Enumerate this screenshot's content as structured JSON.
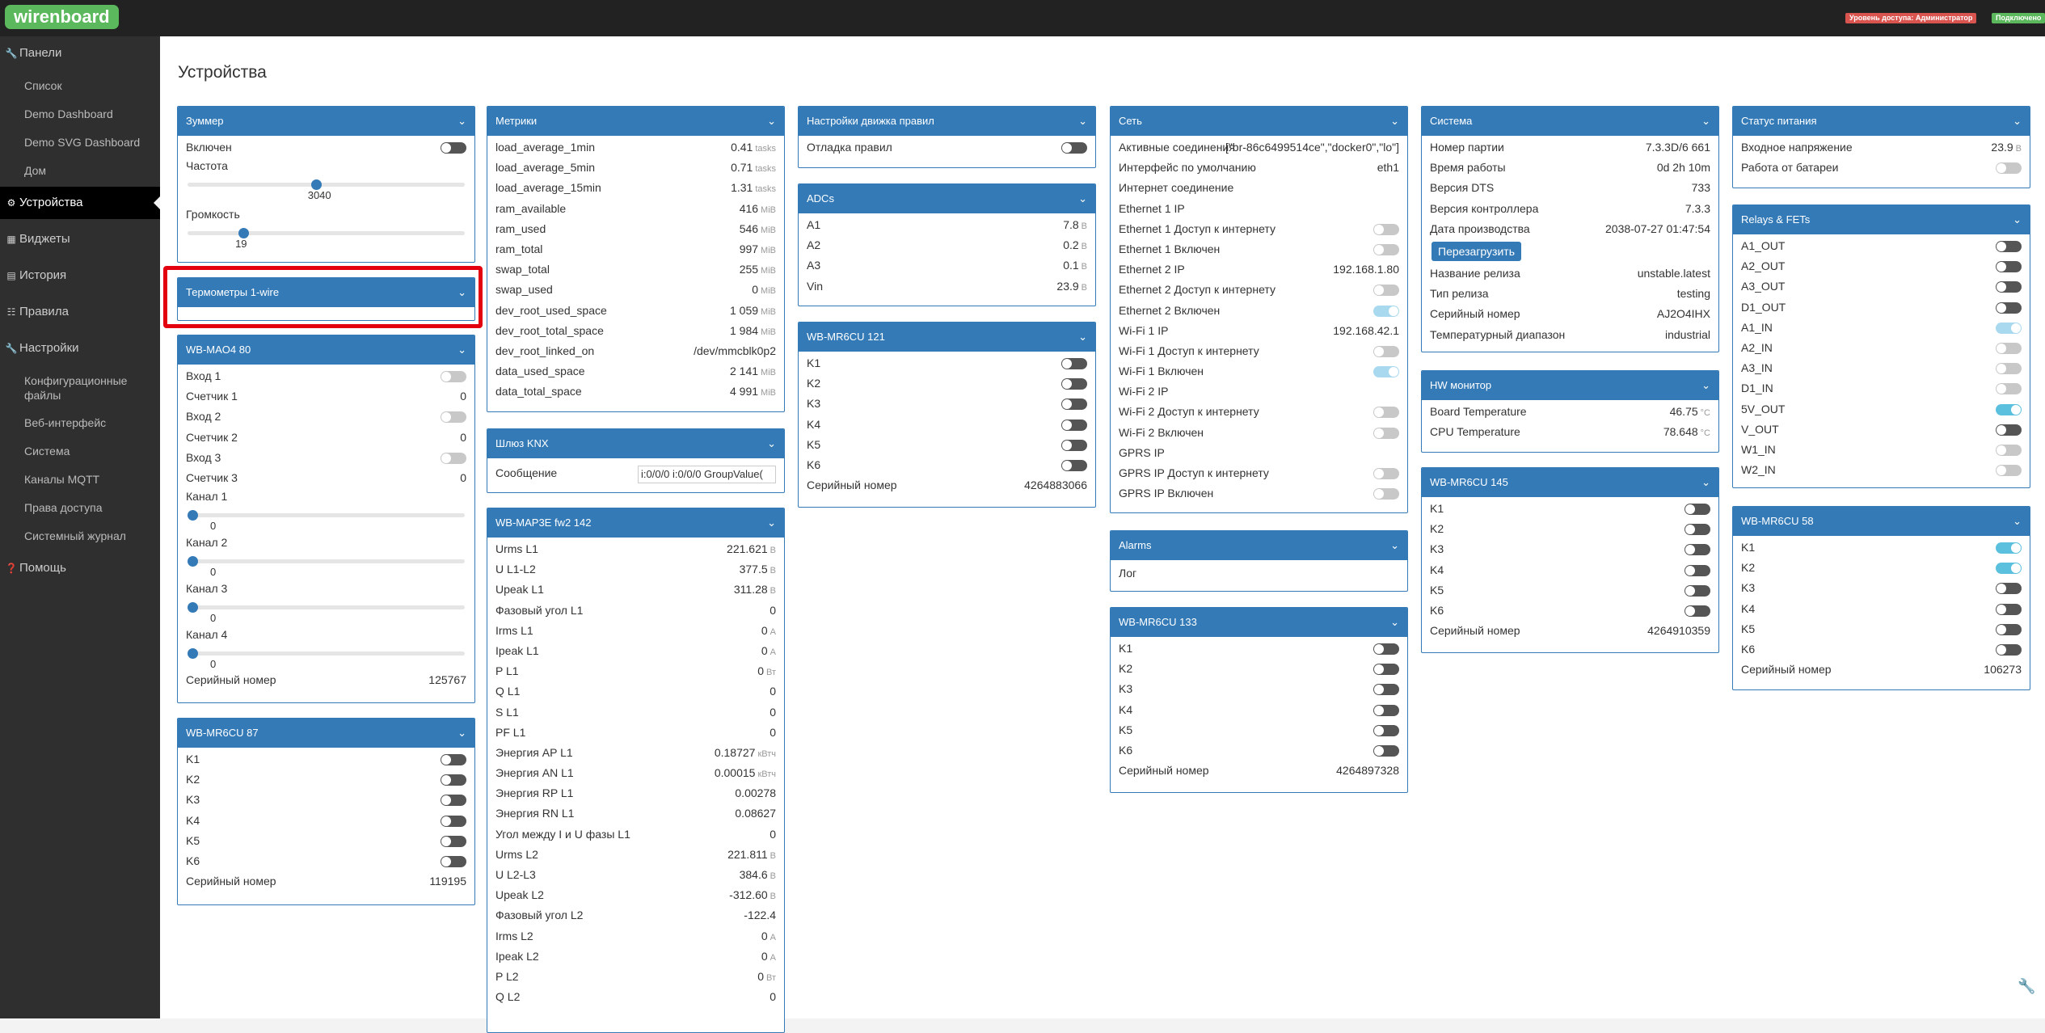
{
  "topbar": {
    "logo": "wirenboard",
    "access_label": "Уровень доступа: Администратор",
    "connection_label": "Подключено"
  },
  "sidebar": {
    "main": [
      {
        "label": "Панели",
        "icon": "wrench-icon"
      },
      {
        "label": "Устройства",
        "icon": "gear-icon"
      },
      {
        "label": "Виджеты",
        "icon": "grid-icon"
      },
      {
        "label": "История",
        "icon": "chart-icon"
      },
      {
        "label": "Правила",
        "icon": "document-icon"
      },
      {
        "label": "Настройки",
        "icon": "wrench-icon"
      },
      {
        "label": "Помощь",
        "icon": "question-icon"
      }
    ],
    "panels_sub": [
      "Список",
      "Demo Dashboard",
      "Demo SVG Dashboard",
      "Дом"
    ],
    "settings_sub": [
      "Конфигурационные файлы",
      "Веб-интерфейс",
      "Система",
      "Каналы MQTT",
      "Права доступа",
      "Системный журнал"
    ]
  },
  "page": {
    "title": "Устройства"
  },
  "buzzer": {
    "title": "Зуммер",
    "enabled": "Включен",
    "freq_label": "Частота",
    "freq_value": "3040",
    "freq_level": 0.46,
    "vol_label": "Громкость",
    "vol_value": "19",
    "vol_level": 0.19
  },
  "onewire": {
    "title": "Термометры 1-wire"
  },
  "mao4": {
    "title": "WB-MAO4 80",
    "inputs": [
      {
        "label": "Вход 1",
        "state": false
      },
      {
        "label": "Счетчик 1",
        "value": "0"
      },
      {
        "label": "Вход 2",
        "state": false
      },
      {
        "label": "Счетчик 2",
        "value": "0"
      },
      {
        "label": "Вход 3",
        "state": false
      },
      {
        "label": "Счетчик 3",
        "value": "0"
      }
    ],
    "channels": [
      {
        "label": "Канал 1",
        "value": "0"
      },
      {
        "label": "Канал 2",
        "value": "0"
      },
      {
        "label": "Канал 3",
        "value": "0"
      },
      {
        "label": "Канал 4",
        "value": "0"
      }
    ],
    "serial_label": "Серийный номер",
    "serial": "125767"
  },
  "mr6cu87": {
    "title": "WB-MR6CU 87",
    "relays": [
      "K1",
      "K2",
      "K3",
      "K4",
      "K5",
      "K6"
    ],
    "serial_label": "Серийный номер",
    "serial": "119195"
  },
  "metrics": {
    "title": "Метрики",
    "rows": [
      {
        "label": "load_average_1min",
        "value": "0.41",
        "unit": "tasks"
      },
      {
        "label": "load_average_5min",
        "value": "0.71",
        "unit": "tasks"
      },
      {
        "label": "load_average_15min",
        "value": "1.31",
        "unit": "tasks"
      },
      {
        "label": "ram_available",
        "value": "416",
        "unit": "MiB"
      },
      {
        "label": "ram_used",
        "value": "546",
        "unit": "MiB"
      },
      {
        "label": "ram_total",
        "value": "997",
        "unit": "MiB"
      },
      {
        "label": "swap_total",
        "value": "255",
        "unit": "MiB"
      },
      {
        "label": "swap_used",
        "value": "0",
        "unit": "MiB"
      },
      {
        "label": "dev_root_used_space",
        "value": "1 059",
        "unit": "MiB"
      },
      {
        "label": "dev_root_total_space",
        "value": "1 984",
        "unit": "MiB"
      },
      {
        "label": "dev_root_linked_on",
        "value": "/dev/mmcblk0p2",
        "unit": ""
      },
      {
        "label": "data_used_space",
        "value": "2 141",
        "unit": "MiB"
      },
      {
        "label": "data_total_space",
        "value": "4 991",
        "unit": "MiB"
      }
    ]
  },
  "knx": {
    "title": "Шлюз KNX",
    "msg_label": "Сообщение",
    "msg_value": "i:0/0/0 i:0/0/0 GroupValue("
  },
  "map3e": {
    "title": "WB-MAP3E fw2 142",
    "rows": [
      {
        "label": "Urms L1",
        "value": "221.621",
        "unit": "В"
      },
      {
        "label": "U L1-L2",
        "value": "377.5",
        "unit": "В"
      },
      {
        "label": "Upeak L1",
        "value": "311.28",
        "unit": "В"
      },
      {
        "label": "Фазовый угол L1",
        "value": "0",
        "unit": ""
      },
      {
        "label": "Irms L1",
        "value": "0",
        "unit": "А"
      },
      {
        "label": "Ipeak L1",
        "value": "0",
        "unit": "А"
      },
      {
        "label": "P L1",
        "value": "0",
        "unit": "Вт"
      },
      {
        "label": "Q L1",
        "value": "0",
        "unit": ""
      },
      {
        "label": "S L1",
        "value": "0",
        "unit": ""
      },
      {
        "label": "PF L1",
        "value": "0",
        "unit": ""
      },
      {
        "label": "Энергия AP L1",
        "value": "0.18727",
        "unit": "кВтч"
      },
      {
        "label": "Энергия AN L1",
        "value": "0.00015",
        "unit": "кВтч"
      },
      {
        "label": "Энергия RP L1",
        "value": "0.00278",
        "unit": ""
      },
      {
        "label": "Энергия RN L1",
        "value": "0.08627",
        "unit": ""
      },
      {
        "label": "Угол между I и U фазы L1",
        "value": "0",
        "unit": ""
      },
      {
        "label": "Urms L2",
        "value": "221.811",
        "unit": "В"
      },
      {
        "label": "U L2-L3",
        "value": "384.6",
        "unit": "В"
      },
      {
        "label": "Upeak L2",
        "value": "-312.60",
        "unit": "В"
      },
      {
        "label": "Фазовый угол L2",
        "value": "-122.4",
        "unit": ""
      },
      {
        "label": "Irms L2",
        "value": "0",
        "unit": "А"
      },
      {
        "label": "Ipeak L2",
        "value": "0",
        "unit": "А"
      },
      {
        "label": "P L2",
        "value": "0",
        "unit": "Вт"
      },
      {
        "label": "Q L2",
        "value": "0",
        "unit": ""
      }
    ]
  },
  "rules": {
    "title": "Настройки движка правил",
    "debug": "Отладка правил"
  },
  "adcs": {
    "title": "ADCs",
    "rows": [
      {
        "label": "A1",
        "value": "7.8",
        "unit": "В"
      },
      {
        "label": "A2",
        "value": "0.2",
        "unit": "В"
      },
      {
        "label": "A3",
        "value": "0.1",
        "unit": "В"
      },
      {
        "label": "Vin",
        "value": "23.9",
        "unit": "В"
      }
    ]
  },
  "mr6cu121": {
    "title": "WB-MR6CU 121",
    "relays": [
      "K1",
      "K2",
      "K3",
      "K4",
      "K5",
      "K6"
    ],
    "serial_label": "Серийный номер",
    "serial": "4264883066"
  },
  "net": {
    "title": "Сеть",
    "rows": [
      {
        "label": "Активные соединения",
        "value": "[\"br-86c6499514ce\",\"docker0\",\"lo\"]"
      },
      {
        "label": "Интерфейс по умолчанию",
        "value": "eth1"
      },
      {
        "label": "Интернет соединение",
        "value": ""
      },
      {
        "label": "Ethernet 1 IP",
        "value": ""
      },
      {
        "label": "Ethernet 1 Доступ к интернету",
        "toggle": false
      },
      {
        "label": "Ethernet 1 Включен",
        "toggle": false
      },
      {
        "label": "Ethernet 2 IP",
        "value": "192.168.1.80"
      },
      {
        "label": "Ethernet 2 Доступ к интернету",
        "toggle": false
      },
      {
        "label": "Ethernet 2 Включен",
        "toggle": true
      },
      {
        "label": "Wi-Fi 1 IP",
        "value": "192.168.42.1"
      },
      {
        "label": "Wi-Fi 1 Доступ к интернету",
        "toggle": false
      },
      {
        "label": "Wi-Fi 1 Включен",
        "toggle": true
      },
      {
        "label": "Wi-Fi 2 IP",
        "value": ""
      },
      {
        "label": "Wi-Fi 2 Доступ к интернету",
        "toggle": false
      },
      {
        "label": "Wi-Fi 2 Включен",
        "toggle": false
      },
      {
        "label": "GPRS IP",
        "value": ""
      },
      {
        "label": "GPRS IP Доступ к интернету",
        "toggle": false
      },
      {
        "label": "GPRS IP Включен",
        "toggle": false
      }
    ]
  },
  "alarms": {
    "title": "Alarms",
    "log": "Лог"
  },
  "mr6cu133": {
    "title": "WB-MR6CU 133",
    "relays": [
      "K1",
      "K2",
      "K3",
      "K4",
      "K5",
      "K6"
    ],
    "serial_label": "Серийный номер",
    "serial": "4264897328"
  },
  "system": {
    "title": "Система",
    "rows": [
      {
        "label": "Номер партии",
        "value": "7.3.3D/6 661"
      },
      {
        "label": "Время работы",
        "value": "0d 2h 10m"
      },
      {
        "label": "Версия DTS",
        "value": "733"
      },
      {
        "label": "Версия контроллера",
        "value": "7.3.3"
      },
      {
        "label": "Дата производства",
        "value": "2038-07-27 01:47:54"
      }
    ],
    "reboot": "Перезагрузить",
    "rows2": [
      {
        "label": "Название релиза",
        "value": "unstable.latest"
      },
      {
        "label": "Тип релиза",
        "value": "testing"
      },
      {
        "label": "Серийный номер",
        "value": "AJ2O4IHX"
      },
      {
        "label": "Температурный диапазон",
        "value": "industrial"
      }
    ]
  },
  "hw": {
    "title": "HW монитор",
    "rows": [
      {
        "label": "Board Temperature",
        "value": "46.75",
        "unit": "°C"
      },
      {
        "label": "CPU Temperature",
        "value": "78.648",
        "unit": "°C"
      }
    ]
  },
  "mr6cu145": {
    "title": "WB-MR6CU 145",
    "relays": [
      "K1",
      "K2",
      "K3",
      "K4",
      "K5",
      "K6"
    ],
    "serial_label": "Серийный номер",
    "serial": "4264910359"
  },
  "power": {
    "title": "Статус питания",
    "rows": [
      {
        "label": "Входное напряжение",
        "value": "23.9",
        "unit": "В"
      },
      {
        "label": "Работа от батареи",
        "toggle": false
      }
    ]
  },
  "relays": {
    "title": "Relays & FETs",
    "rows": [
      {
        "label": "A1_OUT",
        "on": false,
        "light": false
      },
      {
        "label": "A2_OUT",
        "on": false,
        "light": false
      },
      {
        "label": "A3_OUT",
        "on": false,
        "light": false
      },
      {
        "label": "D1_OUT",
        "on": false,
        "light": false
      },
      {
        "label": "A1_IN",
        "on": true,
        "light": true
      },
      {
        "label": "A2_IN",
        "on": false,
        "light": true
      },
      {
        "label": "A3_IN",
        "on": false,
        "light": true
      },
      {
        "label": "D1_IN",
        "on": false,
        "light": true
      },
      {
        "label": "5V_OUT",
        "on": true,
        "light": false
      },
      {
        "label": "V_OUT",
        "on": false,
        "light": false
      },
      {
        "label": "W1_IN",
        "on": false,
        "light": true
      },
      {
        "label": "W2_IN",
        "on": false,
        "light": true
      }
    ]
  },
  "mr6cu58": {
    "title": "WB-MR6CU 58",
    "relays": [
      {
        "label": "K1",
        "on": true
      },
      {
        "label": "K2",
        "on": true
      },
      {
        "label": "K3",
        "on": false
      },
      {
        "label": "K4",
        "on": false
      },
      {
        "label": "K5",
        "on": false
      },
      {
        "label": "K6",
        "on": false
      }
    ],
    "serial_label": "Серийный номер",
    "serial": "106273"
  }
}
